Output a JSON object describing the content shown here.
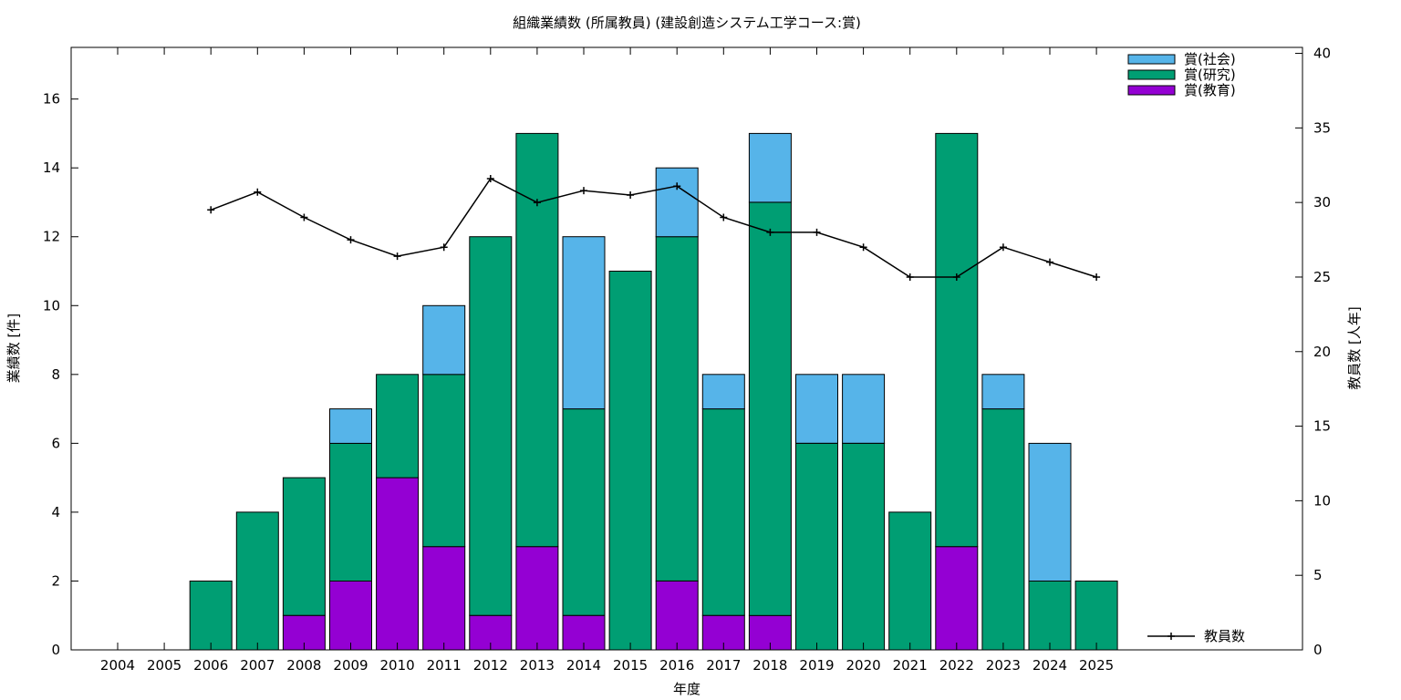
{
  "chart_data": {
    "type": "bar",
    "title": "組織業績数 (所属教員) (建設創造システム工学コース:賞)",
    "xlabel": "年度",
    "ylabel": "業績数 [件]",
    "y2label": "教員数 [人年]",
    "categories": [
      "2004",
      "2005",
      "2006",
      "2007",
      "2008",
      "2009",
      "2010",
      "2011",
      "2012",
      "2013",
      "2014",
      "2015",
      "2016",
      "2017",
      "2018",
      "2019",
      "2020",
      "2021",
      "2022",
      "2023",
      "2024",
      "2025"
    ],
    "ylim": [
      0,
      17.5
    ],
    "yticks": [
      0,
      2,
      4,
      6,
      8,
      10,
      12,
      14,
      16
    ],
    "y2lim": [
      0,
      40.4
    ],
    "y2ticks": [
      0,
      5,
      10,
      15,
      20,
      25,
      30,
      35,
      40
    ],
    "stacked": true,
    "grid": false,
    "legend_position": "top-right",
    "series": [
      {
        "name": "賞(教育)",
        "color": "#9400d3",
        "values": [
          0,
          0,
          0,
          0,
          1,
          2,
          5,
          3,
          1,
          3,
          1,
          0,
          2,
          1,
          1,
          0,
          0,
          0,
          3,
          0,
          0,
          0
        ]
      },
      {
        "name": "賞(研究)",
        "color": "#009e73",
        "values": [
          0,
          0,
          2,
          4,
          4,
          4,
          3,
          5,
          11,
          12,
          6,
          11,
          10,
          6,
          12,
          6,
          6,
          4,
          12,
          7,
          2,
          2
        ]
      },
      {
        "name": "賞(社会)",
        "color": "#56b4e9",
        "values": [
          0,
          0,
          0,
          0,
          0,
          1,
          0,
          2,
          0,
          0,
          5,
          0,
          2,
          1,
          2,
          2,
          2,
          0,
          0,
          1,
          4,
          0
        ]
      }
    ],
    "line_series": {
      "name": "教員数",
      "axis": "right",
      "color": "#000000",
      "values": [
        null,
        null,
        29.5,
        30.7,
        29,
        27.5,
        26.4,
        27,
        31.6,
        30,
        30.8,
        30.5,
        31.1,
        29,
        28,
        28,
        27,
        25,
        25,
        27,
        26,
        25
      ]
    }
  }
}
